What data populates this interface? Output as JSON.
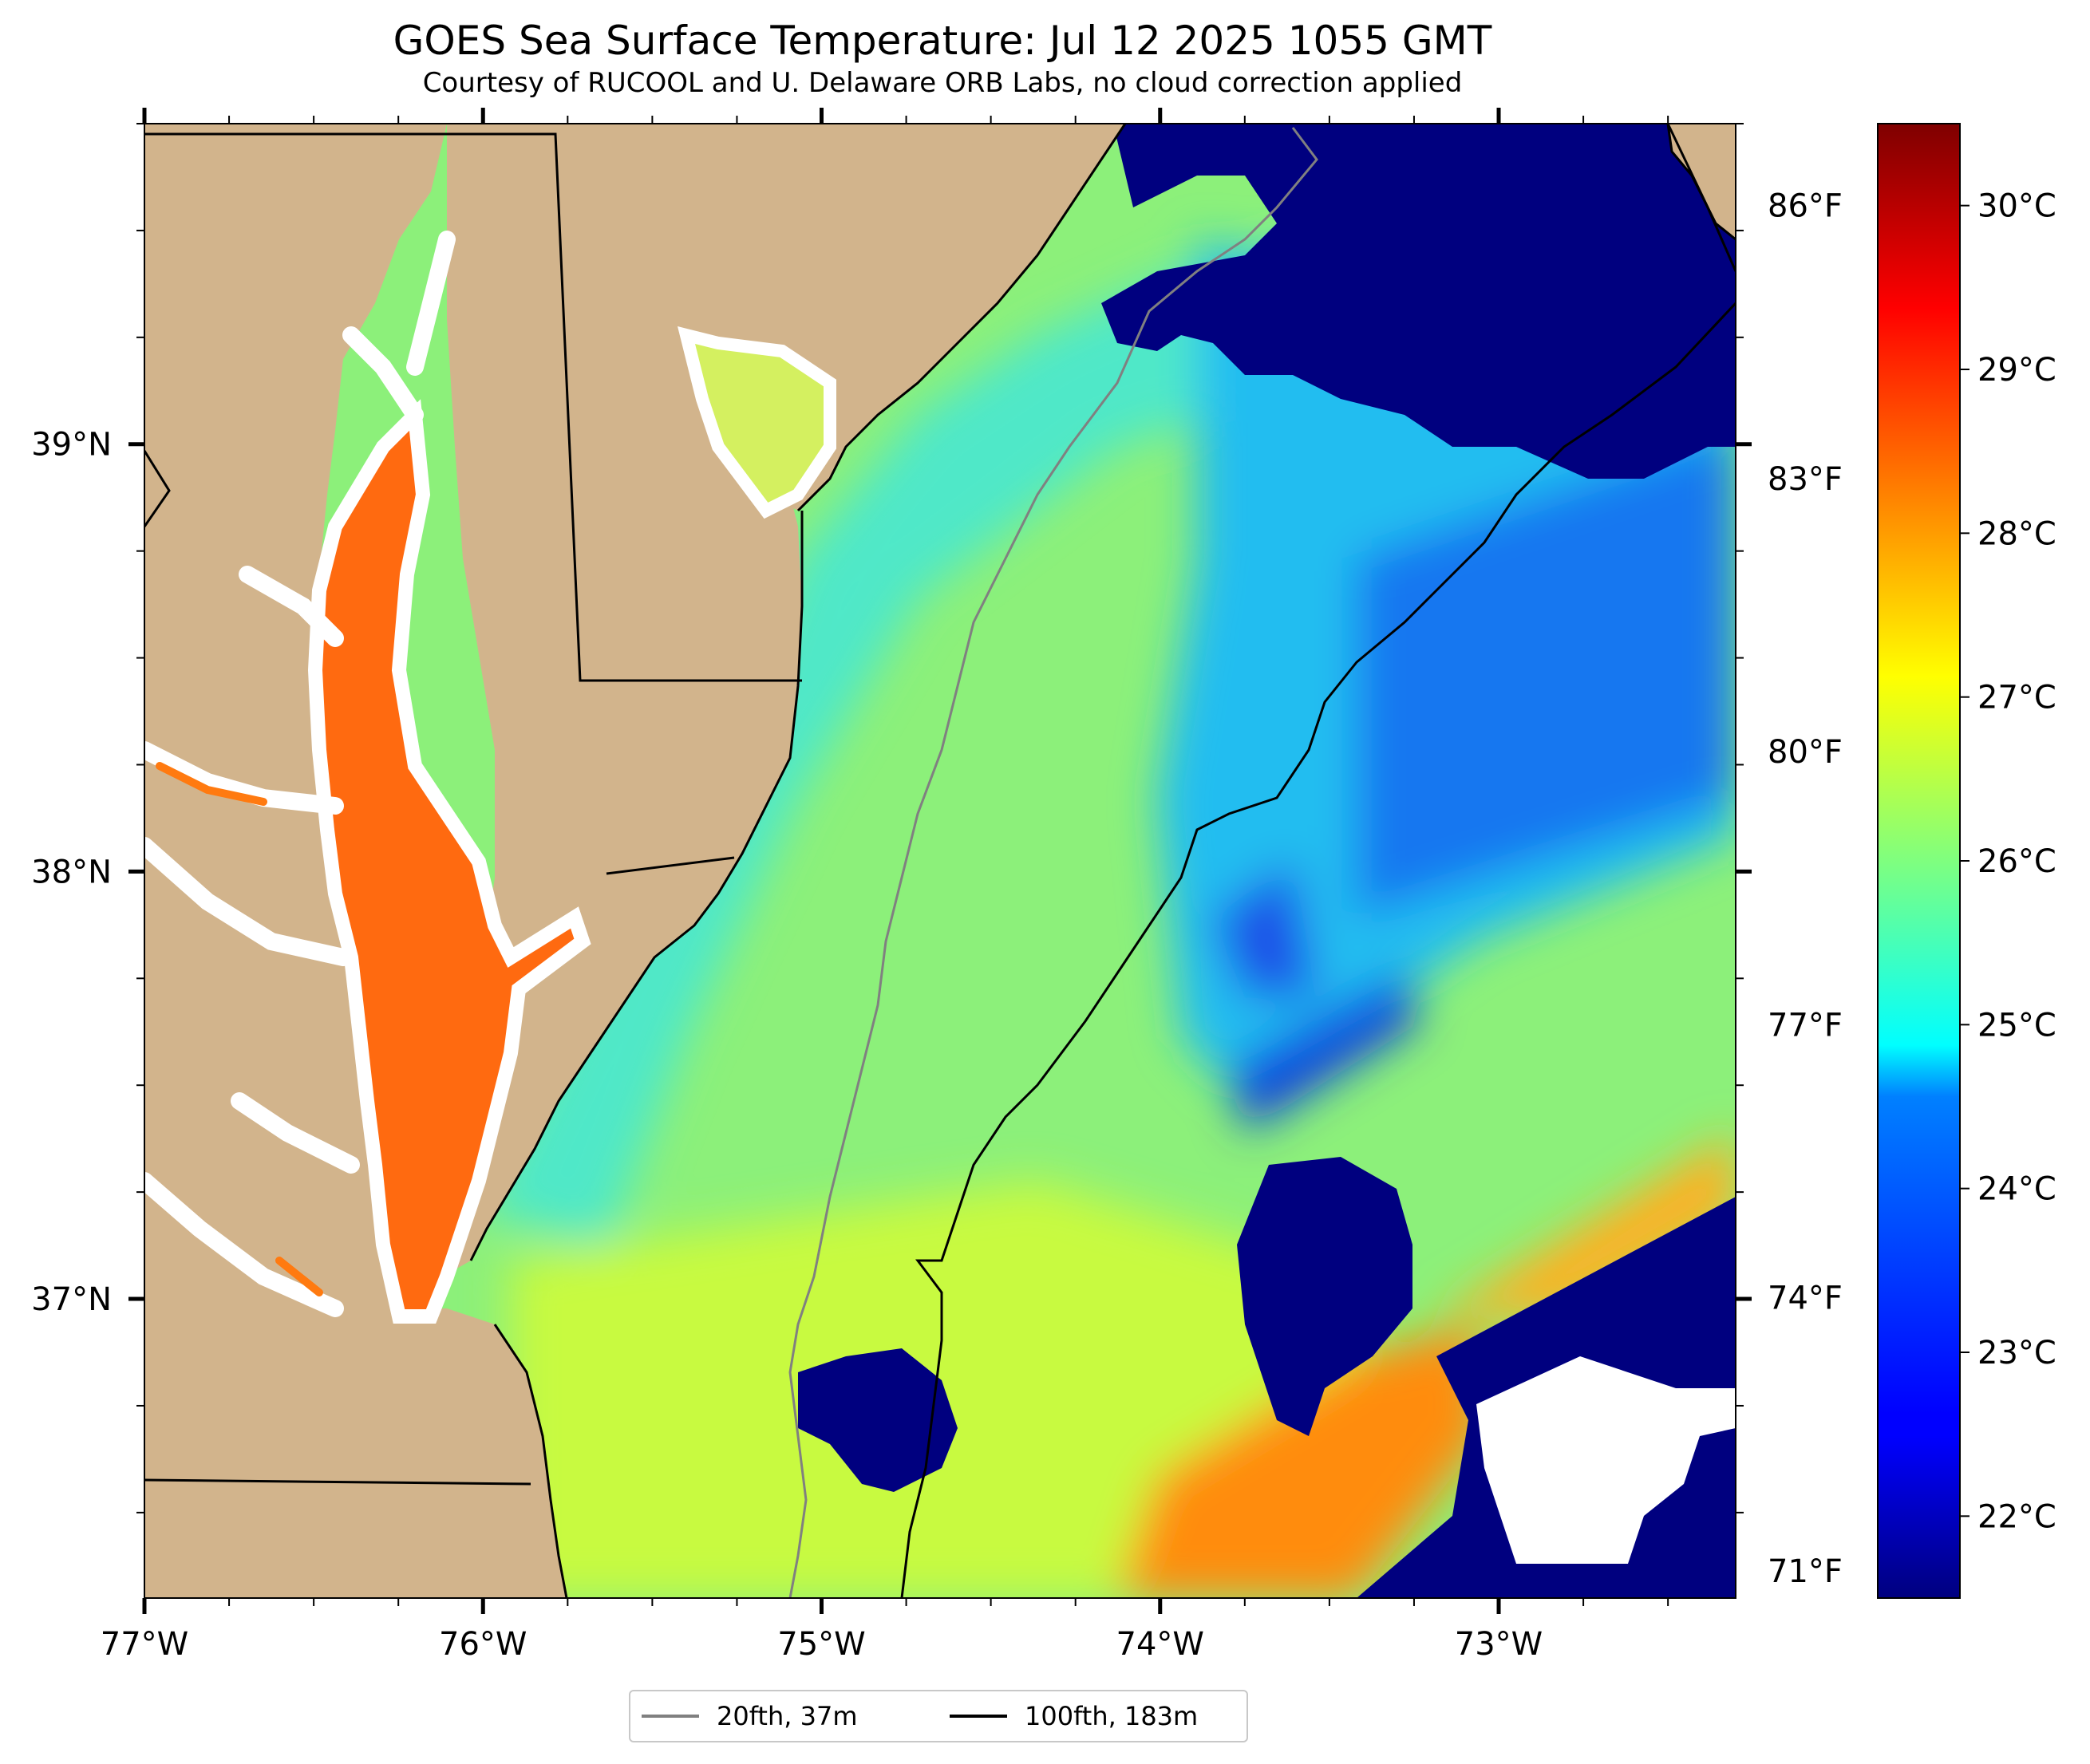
{
  "title": "GOES Sea Surface Temperature: Jul 12 2025 1055 GMT",
  "subtitle": "Courtesy of RUCOOL and U. Delaware ORB Labs, no cloud correction applied",
  "map": {
    "lon_range": [
      -77.0,
      -72.3
    ],
    "lat_range": [
      36.3,
      39.75
    ],
    "x_ticks": [
      "77°W",
      "76°W",
      "75°W",
      "74°W",
      "73°W"
    ],
    "y_ticks": [
      "39°N",
      "38°N",
      "37°N"
    ],
    "right_fahrenheit_ticks": [
      "86°F",
      "83°F",
      "80°F",
      "77°F",
      "74°F",
      "71°F"
    ],
    "colors": {
      "land": "#D2B48C",
      "no_data": "#FFFFFF",
      "isobath_20fth": "#808080",
      "isobath_100fth": "#000000",
      "coastline": "#000000"
    }
  },
  "colorbar": {
    "colormap": "jet",
    "range_c": [
      21.5,
      30.5
    ],
    "celsius_labels": [
      "30°C",
      "29°C",
      "28°C",
      "27°C",
      "26°C",
      "25°C",
      "24°C",
      "23°C",
      "22°C"
    ]
  },
  "legend": [
    {
      "label": "20fth, 37m",
      "color": "#808080"
    },
    {
      "label": "100fth, 183m",
      "color": "#000000"
    }
  ]
}
